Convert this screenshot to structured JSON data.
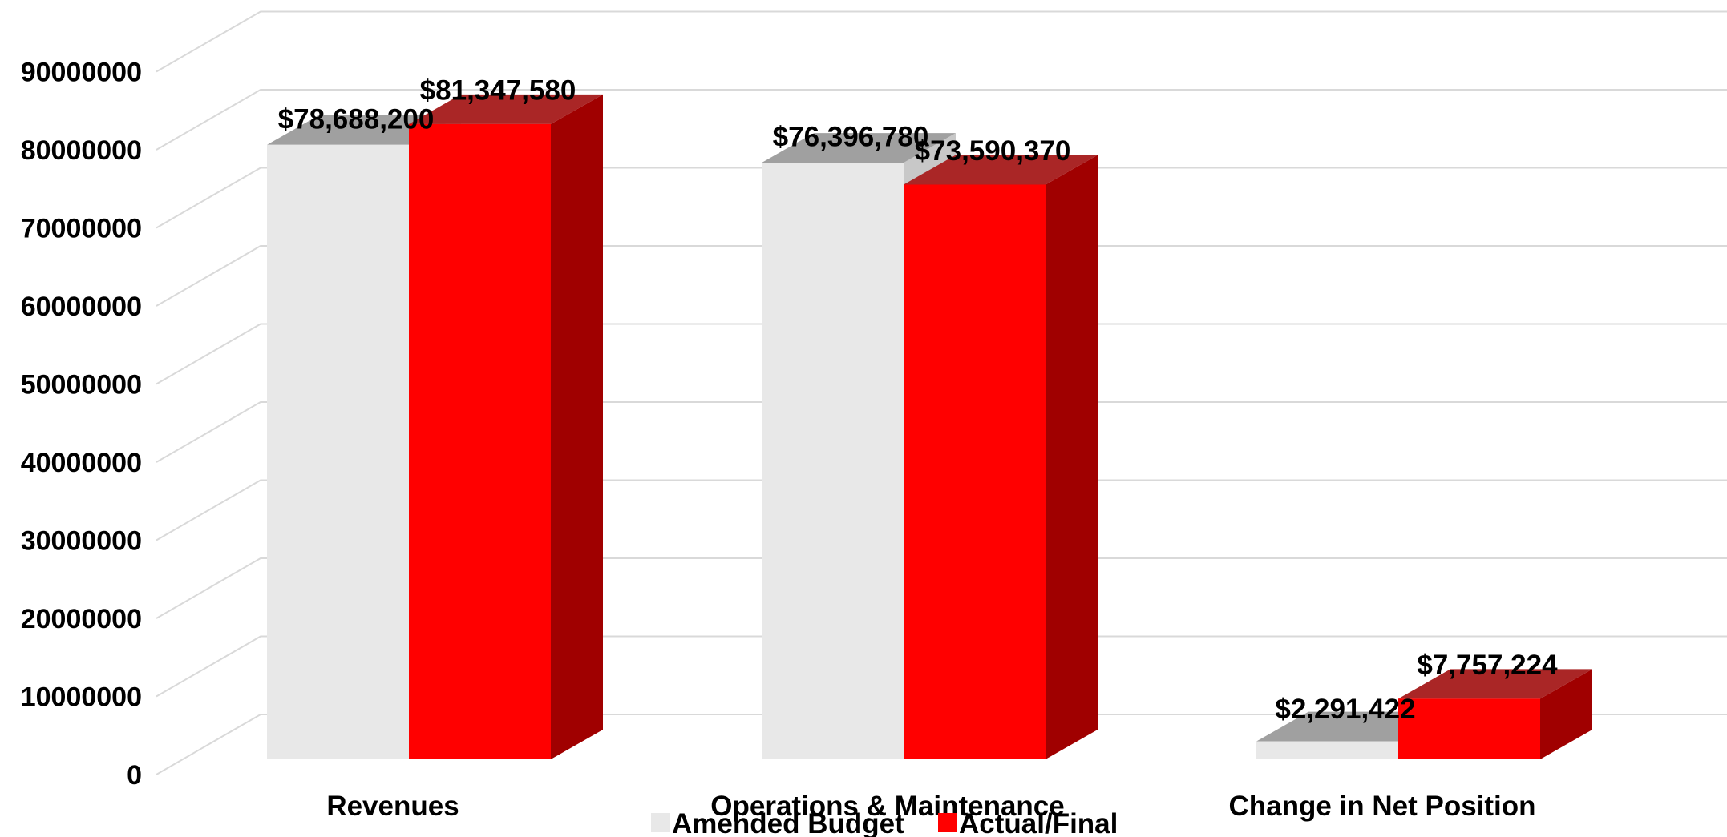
{
  "chart_data": {
    "type": "bar",
    "style": "3d-clustered-column",
    "categories": [
      "Revenues",
      "Operations & Maintenance",
      "Change in Net Position"
    ],
    "series": [
      {
        "name": "Amended Budget",
        "values": [
          78688200,
          76396780,
          2291422
        ],
        "labels": [
          "$78,688,200",
          "$76,396,780",
          "$2,291,422"
        ],
        "color": "#e8e8e8",
        "top_color": "#a0a0a0",
        "side_color": "#c8c8c8"
      },
      {
        "name": "Actual/Final",
        "values": [
          81347580,
          73590370,
          7757224
        ],
        "labels": [
          "$81,347,580",
          "$73,590,370",
          "$7,757,224"
        ],
        "color": "#ff0000",
        "top_color": "#aa2626",
        "side_color": "#a00000"
      }
    ],
    "y_ticks": [
      "0",
      "10000000",
      "20000000",
      "30000000",
      "40000000",
      "50000000",
      "60000000",
      "70000000",
      "80000000",
      "90000000"
    ],
    "ylim": [
      0,
      90000000
    ],
    "grid": true,
    "gridline_color": "#d9d9d9",
    "legend_position": "bottom"
  }
}
